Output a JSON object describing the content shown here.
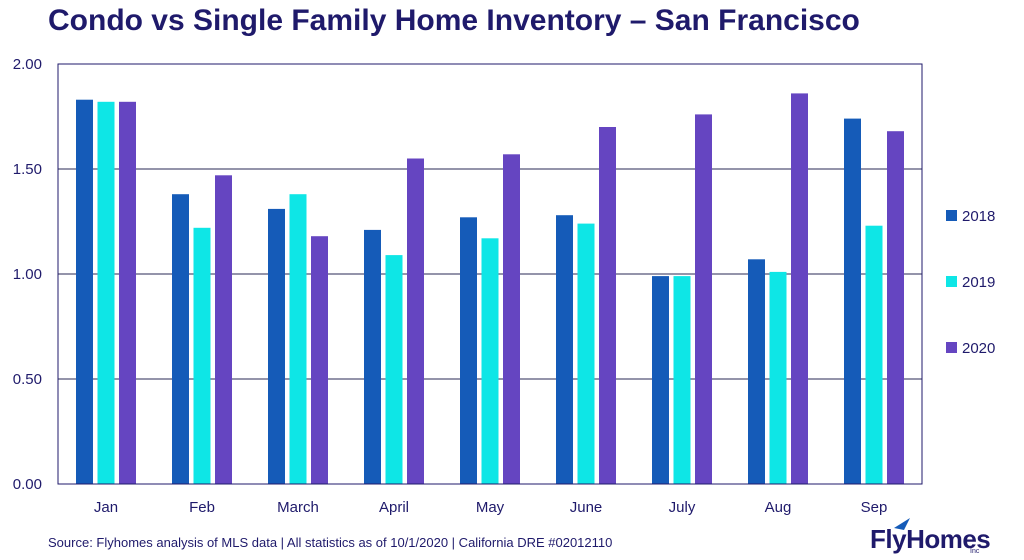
{
  "chart_data": {
    "type": "bar",
    "title": "Condo vs Single Family Home Inventory – San Francisco",
    "categories": [
      "Jan",
      "Feb",
      "March",
      "April",
      "May",
      "June",
      "July",
      "Aug",
      "Sep"
    ],
    "series": [
      {
        "name": "2018",
        "color": "#155bb8",
        "values": [
          1.83,
          1.38,
          1.31,
          1.21,
          1.27,
          1.28,
          0.99,
          1.07,
          1.74
        ]
      },
      {
        "name": "2019",
        "color": "#0ee6e6",
        "values": [
          1.82,
          1.22,
          1.38,
          1.09,
          1.17,
          1.24,
          0.99,
          1.01,
          1.23
        ]
      },
      {
        "name": "2020",
        "color": "#6545c1",
        "values": [
          1.82,
          1.47,
          1.18,
          1.55,
          1.57,
          1.7,
          1.76,
          1.86,
          1.68
        ]
      }
    ],
    "ylim": [
      0,
      2
    ],
    "yticks": [
      "0.00",
      "0.50",
      "1.00",
      "1.50",
      "2.00"
    ],
    "legend_position": "right",
    "grid": true
  },
  "footer": {
    "source": "Source: Flyhomes analysis of MLS data | All statistics as of 10/1/2020 | California DRE #02012110"
  },
  "logo": {
    "text": "FlyHomes",
    "sub": "Inc"
  }
}
